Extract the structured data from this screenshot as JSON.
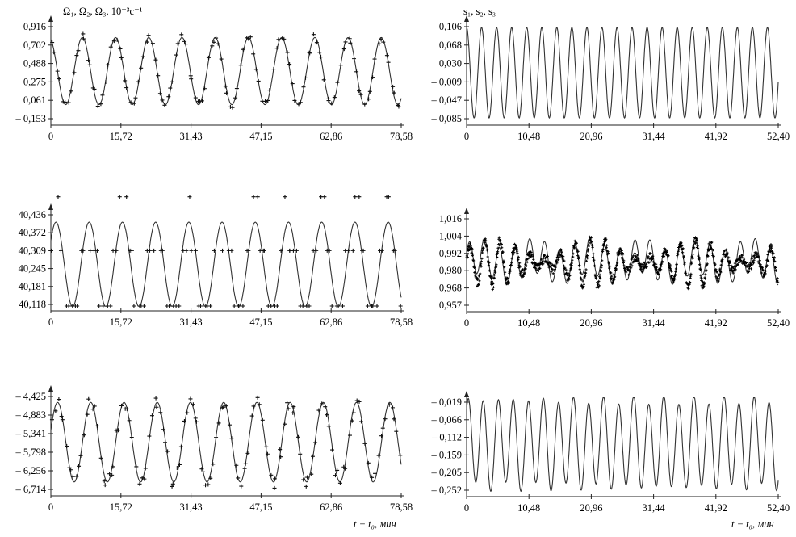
{
  "left_title": "Ω₁, Ω₂, Ω₃, 10⁻³c⁻¹",
  "right_title": "s₁, s₂, s₃",
  "left_xlabel": "t − t₀, мин",
  "right_xlabel": "t − t₀, мин",
  "chart_data": [
    {
      "type": "line",
      "panel": "left-top",
      "xticks": [
        "0",
        "15,72",
        "31,43",
        "47,15",
        "62,86",
        "78,58"
      ],
      "yticks": [
        "0,916",
        "0,702",
        "0,488",
        "0,275",
        "0,061",
        "– 0,153"
      ],
      "xlim": [
        0,
        78.58
      ],
      "ylim": [
        -0.153,
        0.916
      ],
      "series": [
        {
          "style": "curve",
          "amplitude": 0.39,
          "offset": 0.4,
          "period": 7.45,
          "phase": 1.9
        },
        {
          "style": "markers",
          "jitter": 0.09
        }
      ]
    },
    {
      "type": "line",
      "panel": "left-middle",
      "xticks": [
        "0",
        "15,72",
        "31,43",
        "47,15",
        "62,86",
        "78,58"
      ],
      "yticks": [
        "40,436",
        "40,372",
        "40,309",
        "40,245",
        "40,181",
        "40,118"
      ],
      "xlim": [
        0,
        78.58
      ],
      "ylim": [
        40.118,
        40.436
      ],
      "series": [
        {
          "style": "curve",
          "amplitude": 0.15,
          "offset": 40.26,
          "period": 7.45,
          "phase": 0.6
        },
        {
          "style": "markers",
          "levels": [
            40.118,
            40.309,
            40.5
          ]
        }
      ]
    },
    {
      "type": "line",
      "panel": "left-bottom",
      "xticks": [
        "0",
        "15,72",
        "31,43",
        "47,15",
        "62,86",
        "78,58"
      ],
      "yticks": [
        "– 4,425",
        "– 4,883",
        "– 5,341",
        "– 5,798",
        "– 6,256",
        "– 6,714"
      ],
      "xlim": [
        0,
        78.58
      ],
      "ylim": [
        -6.714,
        -4.425
      ],
      "series": [
        {
          "style": "curve",
          "amplitude": 0.98,
          "offset": -5.55,
          "period": 7.45,
          "phase": 0.3
        },
        {
          "style": "markers",
          "jitter": 0.15
        }
      ]
    },
    {
      "type": "line",
      "panel": "right-top",
      "xticks": [
        "0",
        "10,48",
        "20,96",
        "31,44",
        "41,92",
        "52,40"
      ],
      "yticks": [
        "0,106",
        "0,068",
        "0,030",
        "– 0,009",
        "– 0,047",
        "– 0,085"
      ],
      "xlim": [
        0,
        52.4
      ],
      "ylim": [
        -0.085,
        0.106
      ],
      "series": [
        {
          "style": "curve",
          "amplitude": 0.094,
          "offset": 0.0105,
          "period": 2.53,
          "phase": 1.6
        }
      ]
    },
    {
      "type": "line",
      "panel": "right-middle",
      "xticks": [
        "0",
        "10,48",
        "20,96",
        "31,44",
        "41,92",
        "52,40"
      ],
      "yticks": [
        "1,016",
        "1,004",
        "0,992",
        "0,980",
        "0,968",
        "0,957"
      ],
      "xlim": [
        0,
        52.4
      ],
      "ylim": [
        0.957,
        1.016
      ],
      "series": [
        {
          "style": "curve",
          "amplitude": 0.012,
          "offset": 0.987,
          "period": 2.53,
          "phase": 0.4
        },
        {
          "style": "dense-markers",
          "amplitude": 0.016,
          "offset": 0.986,
          "period": 2.53
        }
      ]
    },
    {
      "type": "line",
      "panel": "right-bottom",
      "xticks": [
        "0",
        "10,48",
        "20,96",
        "31,44",
        "41,92",
        "52,40"
      ],
      "yticks": [
        "– 0,019",
        "– 0,066",
        "– 0,112",
        "– 0,159",
        "– 0,205",
        "– 0,252"
      ],
      "xlim": [
        0,
        52.4
      ],
      "ylim": [
        -0.252,
        -0.019
      ],
      "series": [
        {
          "style": "curve",
          "amplitude": 0.115,
          "offset": -0.128,
          "period": 2.53,
          "phase": 0.9
        }
      ]
    }
  ]
}
